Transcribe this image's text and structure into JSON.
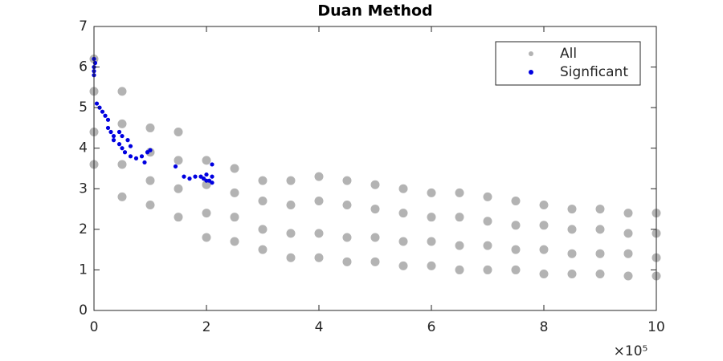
{
  "chart_data": {
    "type": "scatter",
    "title": "Duan Method",
    "x_exponent_label": "×10⁵",
    "xlim": [
      0,
      10
    ],
    "ylim": [
      0,
      7
    ],
    "xticks": [
      0,
      2,
      4,
      6,
      8,
      10
    ],
    "yticks": [
      0,
      1,
      2,
      3,
      4,
      5,
      6,
      7
    ],
    "legend": "top-right",
    "series": [
      {
        "name": "All",
        "color": "#b3b3b3",
        "x": [
          0,
          0,
          0,
          0,
          0.5,
          0.5,
          0.5,
          0.5,
          1,
          1,
          1,
          1,
          1.5,
          1.5,
          1.5,
          1.5,
          2,
          2,
          2,
          2,
          2.5,
          2.5,
          2.5,
          2.5,
          3,
          3,
          3,
          3,
          3.5,
          3.5,
          3.5,
          3.5,
          4,
          4,
          4,
          4,
          4.5,
          4.5,
          4.5,
          4.5,
          5,
          5,
          5,
          5,
          5.5,
          5.5,
          5.5,
          5.5,
          6,
          6,
          6,
          6,
          6.5,
          6.5,
          6.5,
          6.5,
          7,
          7,
          7,
          7,
          7.5,
          7.5,
          7.5,
          7.5,
          8,
          8,
          8,
          8,
          8.5,
          8.5,
          8.5,
          8.5,
          9,
          9,
          9,
          9,
          9.5,
          9.5,
          9.5,
          9.5,
          10,
          10,
          10,
          10
        ],
        "y": [
          3.6,
          4.4,
          5.4,
          6.2,
          2.8,
          3.6,
          4.6,
          5.4,
          2.6,
          3.2,
          3.9,
          4.5,
          2.3,
          3.0,
          3.7,
          4.4,
          1.8,
          2.4,
          3.1,
          3.7,
          1.7,
          2.3,
          2.9,
          3.5,
          1.5,
          2.0,
          2.7,
          3.2,
          1.3,
          1.9,
          2.6,
          3.2,
          1.3,
          1.9,
          2.7,
          3.3,
          1.2,
          1.8,
          2.6,
          3.2,
          1.2,
          1.8,
          2.5,
          3.1,
          1.1,
          1.7,
          2.4,
          3.0,
          1.1,
          1.7,
          2.3,
          2.9,
          1.0,
          1.6,
          2.3,
          2.9,
          1.0,
          1.6,
          2.2,
          2.8,
          1.0,
          1.5,
          2.1,
          2.7,
          0.9,
          1.5,
          2.1,
          2.6,
          0.9,
          1.4,
          2.0,
          2.5,
          0.9,
          1.4,
          2.0,
          2.5,
          0.85,
          1.4,
          1.9,
          2.4,
          0.85,
          1.3,
          1.9,
          2.4
        ]
      },
      {
        "name": "Signficant",
        "color": "#0000e0",
        "x": [
          0,
          0,
          0,
          0,
          0.02,
          0.05,
          0.1,
          0.15,
          0.2,
          0.25,
          0.25,
          0.3,
          0.35,
          0.35,
          0.45,
          0.5,
          0.45,
          0.5,
          0.55,
          0.6,
          0.65,
          0.65,
          0.75,
          0.85,
          0.9,
          0.95,
          1.0,
          1.45,
          1.6,
          1.7,
          1.8,
          1.9,
          1.95,
          2.0,
          2.05,
          2.1,
          2.1,
          2.0,
          2.1
        ],
        "y": [
          6.2,
          6.0,
          5.9,
          5.8,
          6.1,
          5.1,
          5.0,
          4.9,
          4.8,
          4.7,
          4.5,
          4.4,
          4.3,
          4.2,
          4.4,
          4.3,
          4.1,
          4.0,
          3.9,
          4.2,
          4.05,
          3.8,
          3.75,
          3.8,
          3.65,
          3.9,
          3.95,
          3.55,
          3.3,
          3.25,
          3.3,
          3.3,
          3.25,
          3.35,
          3.2,
          3.3,
          3.6,
          3.2,
          3.15
        ]
      }
    ]
  }
}
